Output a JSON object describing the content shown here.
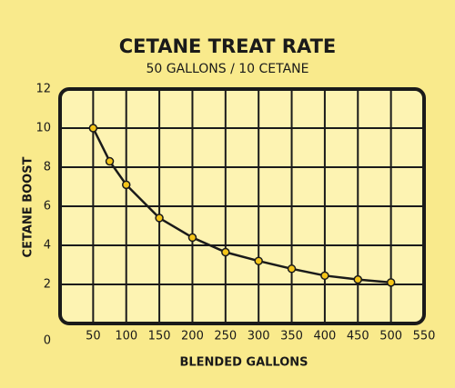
{
  "chart_data": {
    "type": "line",
    "title": "CETANE TREAT RATE",
    "subtitle": "50 GALLONS / 10 CETANE",
    "x_label": "BLENDED GALLONS",
    "y_label": "CETANE BOOST",
    "x": [
      50,
      75,
      100,
      150,
      200,
      250,
      300,
      350,
      400,
      450,
      500
    ],
    "series": [
      {
        "name": "Cetane boost",
        "color": "#1a1a1a",
        "marker_color": "#f5c518",
        "values": [
          10,
          8.3,
          7.1,
          5.4,
          4.4,
          3.65,
          3.2,
          2.8,
          2.45,
          2.25,
          2.1
        ]
      }
    ],
    "xlim": [
      0,
      550
    ],
    "xticks": [
      50,
      100,
      150,
      200,
      250,
      300,
      350,
      400,
      450,
      500,
      550
    ],
    "ylim": [
      0,
      12
    ],
    "yticks": [
      0,
      2,
      4,
      6,
      8,
      10,
      12
    ],
    "grid": true
  }
}
